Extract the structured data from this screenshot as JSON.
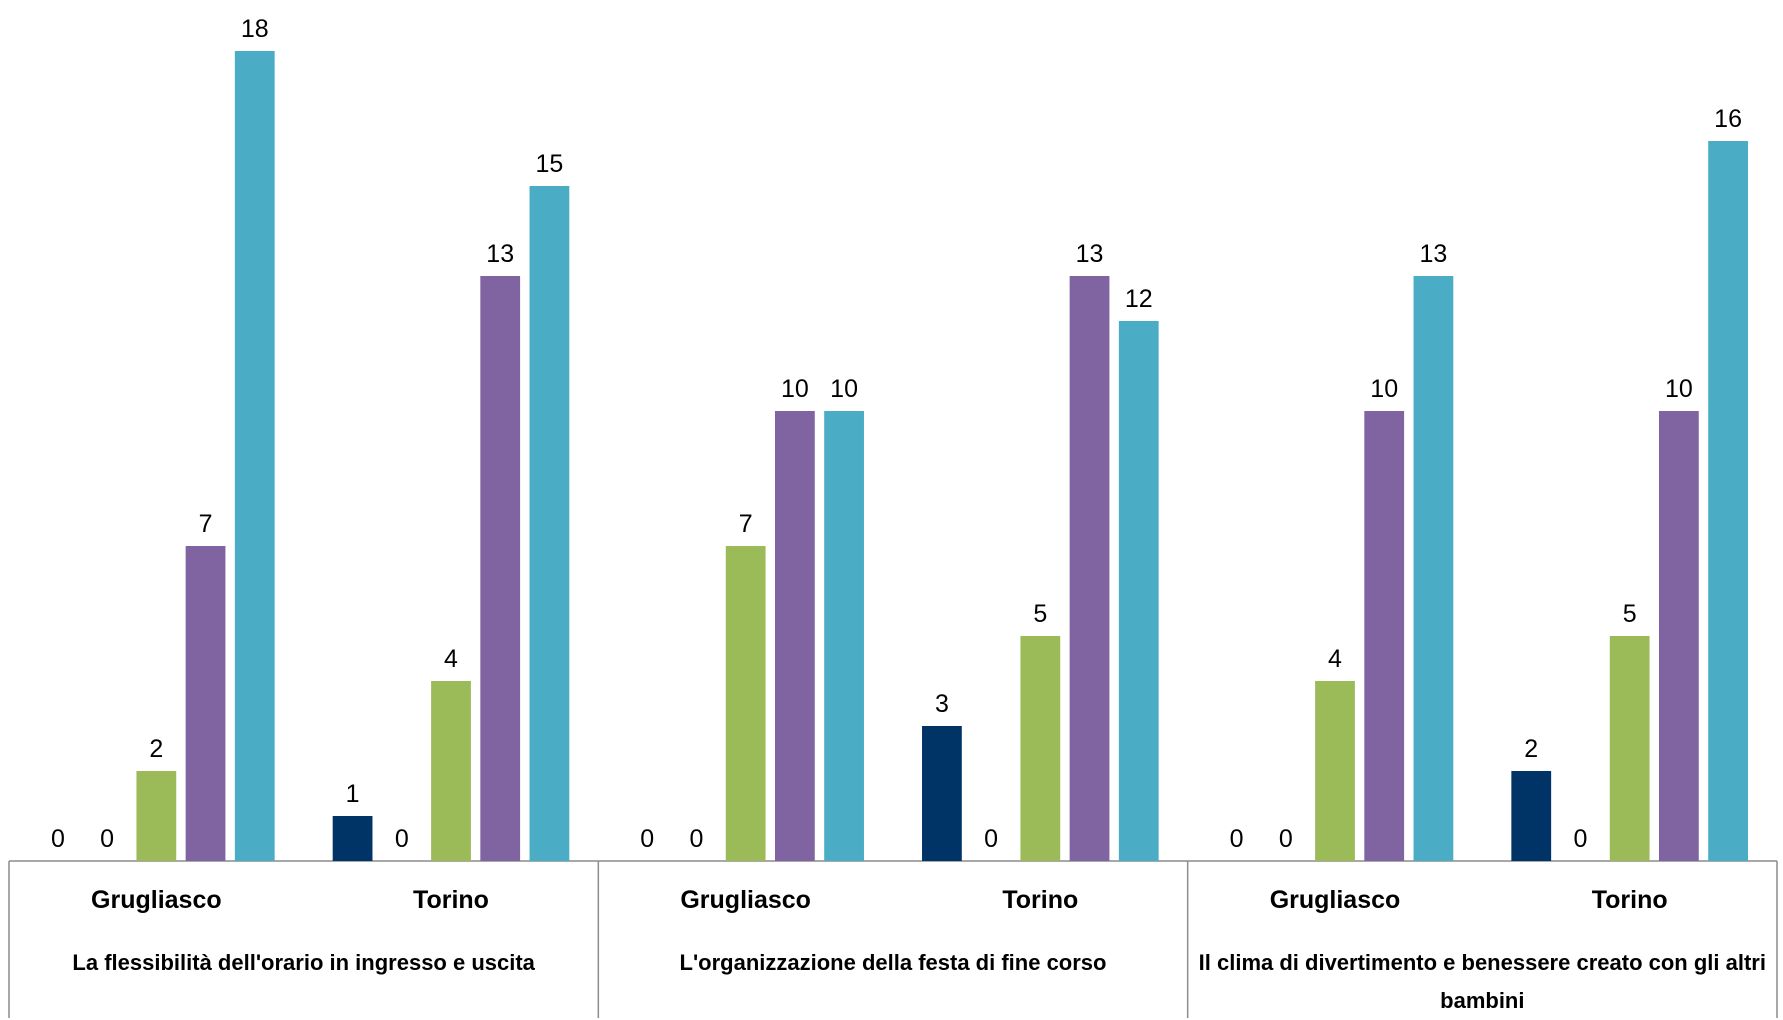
{
  "chart_data": {
    "type": "bar",
    "categories": [
      "Grugliasco",
      "Torino",
      "Grugliasco",
      "Torino",
      "Grugliasco",
      "Torino"
    ],
    "category_groups": [
      "La flessibilità dell'orario in ingresso e uscita",
      "L'organizzazione della festa di fine corso",
      "Il clima di divertimento e benessere creato con gli altri bambini"
    ],
    "series": [
      {
        "color": "#003366",
        "values": [
          0,
          1,
          0,
          3,
          0,
          2
        ]
      },
      {
        "color": "#c0504d",
        "values": [
          0,
          0,
          0,
          0,
          0,
          0
        ]
      },
      {
        "color": "#9bbb59",
        "values": [
          2,
          4,
          7,
          5,
          4,
          5
        ]
      },
      {
        "color": "#8064a2",
        "values": [
          7,
          13,
          10,
          13,
          10,
          10
        ]
      },
      {
        "color": "#4bacc6",
        "values": [
          18,
          15,
          10,
          12,
          13,
          16
        ]
      }
    ],
    "ylim": [
      0,
      19
    ],
    "grid": false,
    "legend": false
  }
}
